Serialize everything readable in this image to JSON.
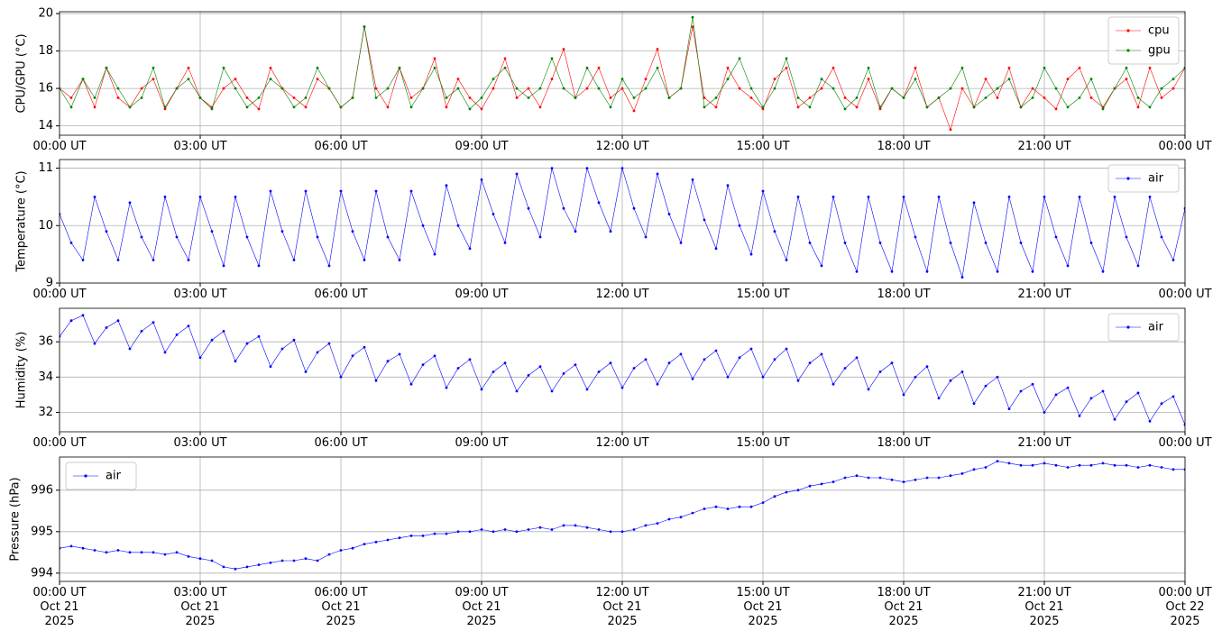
{
  "chart_data": [
    {
      "type": "line",
      "ylabel": "CPU/GPU (°C)",
      "legend": "upper right",
      "grid": true,
      "xlim": [
        0,
        24
      ],
      "ylim": [
        13.5,
        20.1
      ],
      "yticks": [
        14,
        16,
        18,
        20
      ],
      "xticks": [
        {
          "value": 0,
          "label": "00:00 UT"
        },
        {
          "value": 3,
          "label": "03:00 UT"
        },
        {
          "value": 6,
          "label": "06:00 UT"
        },
        {
          "value": 9,
          "label": "09:00 UT"
        },
        {
          "value": 12,
          "label": "12:00 UT"
        },
        {
          "value": 15,
          "label": "15:00 UT"
        },
        {
          "value": 18,
          "label": "18:00 UT"
        },
        {
          "value": 21,
          "label": "21:00 UT"
        },
        {
          "value": 24,
          "label": "00:00 UT"
        }
      ],
      "x": [
        0,
        0.25,
        0.5,
        0.75,
        1,
        1.25,
        1.5,
        1.75,
        2,
        2.25,
        2.5,
        2.75,
        3,
        3.25,
        3.5,
        3.75,
        4,
        4.25,
        4.5,
        4.75,
        5,
        5.25,
        5.5,
        5.75,
        6,
        6.25,
        6.5,
        6.75,
        7,
        7.25,
        7.5,
        7.75,
        8,
        8.25,
        8.5,
        8.75,
        9,
        9.25,
        9.5,
        9.75,
        10,
        10.25,
        10.5,
        10.75,
        11,
        11.25,
        11.5,
        11.75,
        12,
        12.25,
        12.5,
        12.75,
        13,
        13.25,
        13.5,
        13.75,
        14,
        14.25,
        14.5,
        14.75,
        15,
        15.25,
        15.5,
        15.75,
        16,
        16.25,
        16.5,
        16.75,
        17,
        17.25,
        17.5,
        17.75,
        18,
        18.25,
        18.5,
        18.75,
        19,
        19.25,
        19.5,
        19.75,
        20,
        20.25,
        20.5,
        20.75,
        21,
        21.25,
        21.5,
        21.75,
        22,
        22.25,
        22.5,
        22.75,
        23,
        23.25,
        23.5,
        23.75,
        24
      ],
      "series": [
        {
          "name": "cpu",
          "color": "#ff0000",
          "values": [
            16,
            15.5,
            16.5,
            15,
            17.1,
            15.5,
            15,
            16,
            16.5,
            14.9,
            16,
            17.1,
            15.5,
            15,
            16,
            16.5,
            15.5,
            14.9,
            17.1,
            16,
            15.5,
            15,
            16.5,
            16,
            15,
            15.5,
            19.3,
            16,
            15,
            17.1,
            15.5,
            16,
            17.6,
            15,
            16.5,
            15.5,
            14.9,
            16,
            17.6,
            15.5,
            16,
            15,
            16.5,
            18.1,
            15.5,
            16,
            17.1,
            15.5,
            16,
            14.8,
            16.5,
            18.1,
            15.5,
            16,
            19.3,
            15.5,
            15,
            17.1,
            16,
            15.5,
            14.9,
            16.5,
            17.1,
            15,
            15.5,
            16,
            17.1,
            15.5,
            15,
            16.5,
            14.9,
            16,
            15.5,
            17.1,
            15,
            15.5,
            13.8,
            16,
            15,
            16.5,
            15.5,
            17.1,
            15,
            16,
            15.5,
            14.9,
            16.5,
            17.1,
            15.5,
            15,
            16,
            16.5,
            15,
            17.1,
            15.5,
            16,
            17.1
          ]
        },
        {
          "name": "gpu",
          "color": "#008000",
          "values": [
            16,
            15,
            16.5,
            15.5,
            17.1,
            16,
            15,
            15.5,
            17.1,
            15,
            16,
            16.5,
            15.5,
            14.9,
            17.1,
            16,
            15,
            15.5,
            16.5,
            16,
            15,
            15.5,
            17.1,
            16,
            15,
            15.5,
            19.3,
            15.5,
            16,
            17.1,
            15,
            16,
            17.1,
            15.5,
            16,
            14.9,
            15.5,
            16.5,
            17.1,
            16,
            15.5,
            16,
            17.6,
            16,
            15.5,
            17.1,
            16,
            15,
            16.5,
            15.5,
            16,
            17.1,
            15.5,
            16,
            19.8,
            15,
            15.5,
            16.5,
            17.6,
            16,
            15,
            16,
            17.6,
            15.5,
            15,
            16.5,
            16,
            14.9,
            15.5,
            17.1,
            15,
            16,
            15.5,
            16.5,
            15,
            15.5,
            16,
            17.1,
            15,
            15.5,
            16,
            16.5,
            15,
            15.5,
            17.1,
            16,
            15,
            15.5,
            16.5,
            14.9,
            16,
            17.1,
            15.5,
            15,
            16,
            16.5,
            17.1
          ]
        }
      ]
    },
    {
      "type": "line",
      "ylabel": "Temperature (°C)",
      "legend": "upper right",
      "grid": true,
      "xlim": [
        0,
        24
      ],
      "ylim": [
        9,
        11.15
      ],
      "yticks": [
        9,
        10,
        11
      ],
      "xticks": [
        {
          "value": 0,
          "label": "00:00 UT"
        },
        {
          "value": 3,
          "label": "03:00 UT"
        },
        {
          "value": 6,
          "label": "06:00 UT"
        },
        {
          "value": 9,
          "label": "09:00 UT"
        },
        {
          "value": 12,
          "label": "12:00 UT"
        },
        {
          "value": 15,
          "label": "15:00 UT"
        },
        {
          "value": 18,
          "label": "18:00 UT"
        },
        {
          "value": 21,
          "label": "21:00 UT"
        },
        {
          "value": 24,
          "label": "00:00 UT"
        }
      ],
      "x": [
        0,
        0.25,
        0.5,
        0.75,
        1,
        1.25,
        1.5,
        1.75,
        2,
        2.25,
        2.5,
        2.75,
        3,
        3.25,
        3.5,
        3.75,
        4,
        4.25,
        4.5,
        4.75,
        5,
        5.25,
        5.5,
        5.75,
        6,
        6.25,
        6.5,
        6.75,
        7,
        7.25,
        7.5,
        7.75,
        8,
        8.25,
        8.5,
        8.75,
        9,
        9.25,
        9.5,
        9.75,
        10,
        10.25,
        10.5,
        10.75,
        11,
        11.25,
        11.5,
        11.75,
        12,
        12.25,
        12.5,
        12.75,
        13,
        13.25,
        13.5,
        13.75,
        14,
        14.25,
        14.5,
        14.75,
        15,
        15.25,
        15.5,
        15.75,
        16,
        16.25,
        16.5,
        16.75,
        17,
        17.25,
        17.5,
        17.75,
        18,
        18.25,
        18.5,
        18.75,
        19,
        19.25,
        19.5,
        19.75,
        20,
        20.25,
        20.5,
        20.75,
        21,
        21.25,
        21.5,
        21.75,
        22,
        22.25,
        22.5,
        22.75,
        23,
        23.25,
        23.5,
        23.75,
        24
      ],
      "series": [
        {
          "name": "air",
          "color": "#0000ff",
          "values": [
            10.2,
            9.7,
            9.4,
            10.5,
            9.9,
            9.4,
            10.4,
            9.8,
            9.4,
            10.5,
            9.8,
            9.4,
            10.5,
            9.9,
            9.3,
            10.5,
            9.8,
            9.3,
            10.6,
            9.9,
            9.4,
            10.6,
            9.8,
            9.3,
            10.6,
            9.9,
            9.4,
            10.6,
            9.8,
            9.4,
            10.6,
            10.0,
            9.5,
            10.7,
            10.0,
            9.6,
            10.8,
            10.2,
            9.7,
            10.9,
            10.3,
            9.8,
            11.0,
            10.3,
            9.9,
            11.0,
            10.4,
            9.9,
            11.0,
            10.3,
            9.8,
            10.9,
            10.2,
            9.7,
            10.8,
            10.1,
            9.6,
            10.7,
            10.0,
            9.5,
            10.6,
            9.9,
            9.4,
            10.5,
            9.7,
            9.3,
            10.5,
            9.7,
            9.2,
            10.5,
            9.7,
            9.2,
            10.5,
            9.8,
            9.2,
            10.5,
            9.7,
            9.1,
            10.4,
            9.7,
            9.2,
            10.5,
            9.7,
            9.2,
            10.5,
            9.8,
            9.3,
            10.5,
            9.7,
            9.2,
            10.5,
            9.8,
            9.3,
            10.5,
            9.8,
            9.4,
            10.3
          ]
        }
      ]
    },
    {
      "type": "line",
      "ylabel": "Humidity (%)",
      "legend": "upper right",
      "grid": true,
      "xlim": [
        0,
        24
      ],
      "ylim": [
        30.9,
        37.9
      ],
      "yticks": [
        32,
        34,
        36
      ],
      "xticks": [
        {
          "value": 0,
          "label": "00:00 UT"
        },
        {
          "value": 3,
          "label": "03:00 UT"
        },
        {
          "value": 6,
          "label": "06:00 UT"
        },
        {
          "value": 9,
          "label": "09:00 UT"
        },
        {
          "value": 12,
          "label": "12:00 UT"
        },
        {
          "value": 15,
          "label": "15:00 UT"
        },
        {
          "value": 18,
          "label": "18:00 UT"
        },
        {
          "value": 21,
          "label": "21:00 UT"
        },
        {
          "value": 24,
          "label": "00:00 UT"
        }
      ],
      "x": [
        0,
        0.25,
        0.5,
        0.75,
        1,
        1.25,
        1.5,
        1.75,
        2,
        2.25,
        2.5,
        2.75,
        3,
        3.25,
        3.5,
        3.75,
        4,
        4.25,
        4.5,
        4.75,
        5,
        5.25,
        5.5,
        5.75,
        6,
        6.25,
        6.5,
        6.75,
        7,
        7.25,
        7.5,
        7.75,
        8,
        8.25,
        8.5,
        8.75,
        9,
        9.25,
        9.5,
        9.75,
        10,
        10.25,
        10.5,
        10.75,
        11,
        11.25,
        11.5,
        11.75,
        12,
        12.25,
        12.5,
        12.75,
        13,
        13.25,
        13.5,
        13.75,
        14,
        14.25,
        14.5,
        14.75,
        15,
        15.25,
        15.5,
        15.75,
        16,
        16.25,
        16.5,
        16.75,
        17,
        17.25,
        17.5,
        17.75,
        18,
        18.25,
        18.5,
        18.75,
        19,
        19.25,
        19.5,
        19.75,
        20,
        20.25,
        20.5,
        20.75,
        21,
        21.25,
        21.5,
        21.75,
        22,
        22.25,
        22.5,
        22.75,
        23,
        23.25,
        23.5,
        23.75,
        24
      ],
      "series": [
        {
          "name": "air",
          "color": "#0000ff",
          "values": [
            36.3,
            37.2,
            37.5,
            35.9,
            36.8,
            37.2,
            35.6,
            36.6,
            37.1,
            35.4,
            36.4,
            36.9,
            35.1,
            36.1,
            36.6,
            34.9,
            35.9,
            36.3,
            34.6,
            35.6,
            36.1,
            34.3,
            35.4,
            35.9,
            34.0,
            35.2,
            35.7,
            33.8,
            34.9,
            35.3,
            33.6,
            34.7,
            35.2,
            33.4,
            34.5,
            35.0,
            33.3,
            34.3,
            34.8,
            33.2,
            34.1,
            34.6,
            33.2,
            34.2,
            34.7,
            33.3,
            34.3,
            34.8,
            33.4,
            34.5,
            35.0,
            33.6,
            34.8,
            35.3,
            33.9,
            35.0,
            35.5,
            34.0,
            35.1,
            35.6,
            34.0,
            35.0,
            35.6,
            33.8,
            34.8,
            35.3,
            33.6,
            34.5,
            35.1,
            33.3,
            34.3,
            34.8,
            33.0,
            34.0,
            34.6,
            32.8,
            33.8,
            34.3,
            32.5,
            33.5,
            34.0,
            32.2,
            33.2,
            33.6,
            32.0,
            33.0,
            33.4,
            31.8,
            32.8,
            33.2,
            31.6,
            32.6,
            33.1,
            31.5,
            32.5,
            32.9,
            31.3
          ]
        }
      ]
    },
    {
      "type": "line",
      "ylabel": "Pressure (hPa)",
      "legend": "upper left",
      "grid": true,
      "xlim": [
        0,
        24
      ],
      "ylim": [
        993.8,
        996.8
      ],
      "yticks": [
        994,
        995,
        996
      ],
      "xticks": [
        {
          "value": 0,
          "label": "00:00 UT\nOct 21\n2025"
        },
        {
          "value": 3,
          "label": "03:00 UT\nOct 21\n2025"
        },
        {
          "value": 6,
          "label": "06:00 UT\nOct 21\n2025"
        },
        {
          "value": 9,
          "label": "09:00 UT\nOct 21\n2025"
        },
        {
          "value": 12,
          "label": "12:00 UT\nOct 21\n2025"
        },
        {
          "value": 15,
          "label": "15:00 UT\nOct 21\n2025"
        },
        {
          "value": 18,
          "label": "18:00 UT\nOct 21\n2025"
        },
        {
          "value": 21,
          "label": "21:00 UT\nOct 21\n2025"
        },
        {
          "value": 24,
          "label": "00:00 UT\nOct 22\n2025"
        }
      ],
      "x": [
        0,
        0.25,
        0.5,
        0.75,
        1,
        1.25,
        1.5,
        1.75,
        2,
        2.25,
        2.5,
        2.75,
        3,
        3.25,
        3.5,
        3.75,
        4,
        4.25,
        4.5,
        4.75,
        5,
        5.25,
        5.5,
        5.75,
        6,
        6.25,
        6.5,
        6.75,
        7,
        7.25,
        7.5,
        7.75,
        8,
        8.25,
        8.5,
        8.75,
        9,
        9.25,
        9.5,
        9.75,
        10,
        10.25,
        10.5,
        10.75,
        11,
        11.25,
        11.5,
        11.75,
        12,
        12.25,
        12.5,
        12.75,
        13,
        13.25,
        13.5,
        13.75,
        14,
        14.25,
        14.5,
        14.75,
        15,
        15.25,
        15.5,
        15.75,
        16,
        16.25,
        16.5,
        16.75,
        17,
        17.25,
        17.5,
        17.75,
        18,
        18.25,
        18.5,
        18.75,
        19,
        19.25,
        19.5,
        19.75,
        20,
        20.25,
        20.5,
        20.75,
        21,
        21.25,
        21.5,
        21.75,
        22,
        22.25,
        22.5,
        22.75,
        23,
        23.25,
        23.5,
        23.75,
        24
      ],
      "series": [
        {
          "name": "air",
          "color": "#0000ff",
          "values": [
            994.6,
            994.65,
            994.6,
            994.55,
            994.5,
            994.55,
            994.5,
            994.5,
            994.5,
            994.45,
            994.5,
            994.4,
            994.35,
            994.3,
            994.15,
            994.1,
            994.15,
            994.2,
            994.25,
            994.3,
            994.3,
            994.35,
            994.3,
            994.45,
            994.55,
            994.6,
            994.7,
            994.75,
            994.8,
            994.85,
            994.9,
            994.9,
            994.95,
            994.95,
            995.0,
            995.0,
            995.05,
            995.0,
            995.05,
            995.0,
            995.05,
            995.1,
            995.05,
            995.15,
            995.15,
            995.1,
            995.05,
            995.0,
            995.0,
            995.05,
            995.15,
            995.2,
            995.3,
            995.35,
            995.45,
            995.55,
            995.6,
            995.55,
            995.6,
            995.6,
            995.7,
            995.85,
            995.95,
            996.0,
            996.1,
            996.15,
            996.2,
            996.3,
            996.35,
            996.3,
            996.3,
            996.25,
            996.2,
            996.25,
            996.3,
            996.3,
            996.35,
            996.4,
            996.5,
            996.55,
            996.7,
            996.65,
            996.6,
            996.6,
            996.65,
            996.6,
            996.55,
            996.6,
            996.6,
            996.65,
            996.6,
            996.6,
            996.55,
            996.6,
            996.55,
            996.5,
            996.5
          ]
        }
      ]
    }
  ]
}
